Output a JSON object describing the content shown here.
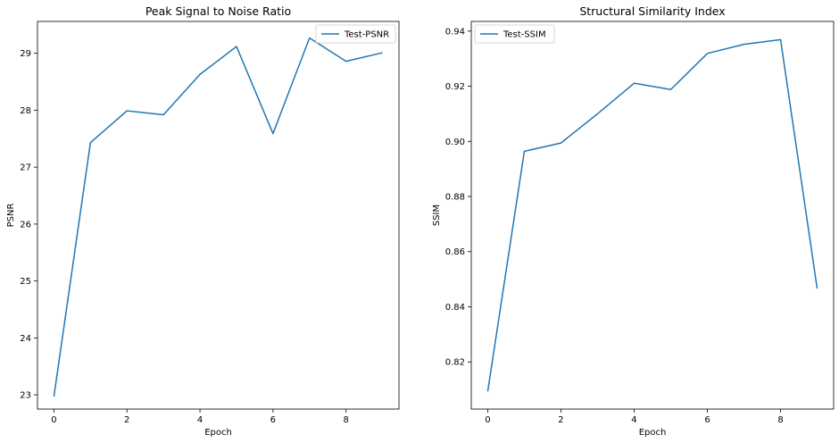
{
  "chart_data": [
    {
      "type": "line",
      "title": "Peak Signal to Noise Ratio",
      "xlabel": "Epoch",
      "ylabel": "PSNR",
      "x": [
        0,
        1,
        2,
        3,
        4,
        5,
        6,
        7,
        8,
        9
      ],
      "series": [
        {
          "name": "Test-PSNR",
          "values": [
            22.97,
            27.43,
            27.99,
            27.92,
            28.63,
            29.12,
            27.59,
            29.27,
            28.86,
            29.01
          ],
          "color": "#1f77b4"
        }
      ],
      "xlim": [
        -0.45,
        9.45
      ],
      "ylim": [
        22.75,
        29.56
      ],
      "xticks": [
        0,
        2,
        4,
        6,
        8
      ],
      "yticks": [
        23,
        24,
        25,
        26,
        27,
        28,
        29
      ],
      "xtick_labels": [
        "0",
        "2",
        "4",
        "6",
        "8"
      ],
      "ytick_labels": [
        "23",
        "24",
        "25",
        "26",
        "27",
        "28",
        "29"
      ],
      "legend": "top-right",
      "grid": false
    },
    {
      "type": "line",
      "title": "Structural Similarity Index",
      "xlabel": "Epoch",
      "ylabel": "SSIM",
      "x": [
        0,
        1,
        2,
        3,
        4,
        5,
        6,
        7,
        8,
        9
      ],
      "series": [
        {
          "name": "Test-SSIM",
          "values": [
            0.8093,
            0.8964,
            0.8994,
            0.91,
            0.9211,
            0.9188,
            0.9319,
            0.9352,
            0.9369,
            0.8466
          ],
          "color": "#1f77b4"
        }
      ],
      "xlim": [
        -0.45,
        9.45
      ],
      "ylim": [
        0.8029,
        0.9435
      ],
      "xticks": [
        0,
        2,
        4,
        6,
        8
      ],
      "yticks": [
        0.82,
        0.84,
        0.86,
        0.88,
        0.9,
        0.92,
        0.94
      ],
      "xtick_labels": [
        "0",
        "2",
        "4",
        "6",
        "8"
      ],
      "ytick_labels": [
        "0.82",
        "0.84",
        "0.86",
        "0.88",
        "0.90",
        "0.92",
        "0.94"
      ],
      "legend": "top-left",
      "grid": false
    }
  ]
}
